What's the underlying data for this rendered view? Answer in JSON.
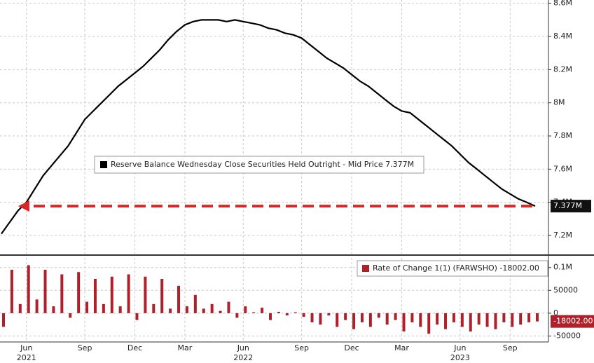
{
  "chart_data": [
    {
      "type": "line",
      "series": [
        {
          "name": "Reserve Balance Wednesday Close Securities Held Outright - Mid Price 7.377M",
          "color": "#000000",
          "values": [
            7.21,
            7.28,
            7.35,
            7.4,
            7.48,
            7.56,
            7.62,
            7.68,
            7.74,
            7.82,
            7.9,
            7.95,
            8.0,
            8.05,
            8.1,
            8.14,
            8.18,
            8.22,
            8.27,
            8.32,
            8.38,
            8.43,
            8.47,
            8.49,
            8.5,
            8.5,
            8.5,
            8.49,
            8.5,
            8.49,
            8.48,
            8.47,
            8.45,
            8.44,
            8.42,
            8.41,
            8.39,
            8.35,
            8.31,
            8.27,
            8.24,
            8.21,
            8.17,
            8.13,
            8.1,
            8.06,
            8.02,
            7.98,
            7.95,
            7.94,
            7.9,
            7.86,
            7.82,
            7.78,
            7.74,
            7.69,
            7.64,
            7.6,
            7.56,
            7.52,
            7.48,
            7.45,
            7.42,
            7.4,
            7.377
          ],
          "value_labels": [
            null,
            null,
            null,
            null,
            null,
            null,
            null,
            null,
            null,
            null,
            null,
            null,
            null,
            null,
            null,
            null,
            null,
            null,
            null,
            null,
            null,
            null,
            null,
            null,
            null,
            null,
            null,
            null,
            null,
            null,
            null,
            null,
            null,
            null,
            null,
            null,
            null,
            null,
            null,
            null,
            null,
            null,
            null,
            null,
            null,
            null,
            null,
            null,
            null,
            null,
            null,
            null,
            null,
            null,
            null,
            null,
            null,
            null,
            null,
            null,
            null,
            null,
            null,
            null,
            "7.377M"
          ]
        }
      ],
      "ylim": [
        7.09,
        8.62
      ],
      "yticks": [
        {
          "value": 7.2,
          "label": "7.2M"
        },
        {
          "value": 7.4,
          "label": "7.4M"
        },
        {
          "value": 7.6,
          "label": "7.6M"
        },
        {
          "value": 7.8,
          "label": "7.8M"
        },
        {
          "value": 8,
          "label": "8M"
        },
        {
          "value": 8.2,
          "label": "8.2M"
        },
        {
          "value": 8.4,
          "label": "8.4M"
        },
        {
          "value": 8.6,
          "label": "8.6M"
        }
      ],
      "grid": true,
      "arrow_color": "#d62a2a"
    },
    {
      "type": "bar",
      "categories": [
        null,
        null,
        null,
        "Jun",
        null,
        null,
        null,
        null,
        null,
        null,
        "Sep",
        null,
        null,
        null,
        null,
        null,
        "Dec",
        null,
        null,
        null,
        null,
        null,
        "Mar",
        null,
        null,
        null,
        null,
        null,
        null,
        "Jun",
        null,
        null,
        null,
        null,
        null,
        null,
        "Sep",
        null,
        null,
        null,
        null,
        null,
        "Dec",
        null,
        null,
        null,
        null,
        null,
        "Mar",
        null,
        null,
        null,
        null,
        null,
        null,
        "Jun",
        null,
        null,
        null,
        null,
        null,
        "Sep",
        null,
        null,
        null
      ],
      "x_year_labels": [
        "2021",
        "2022",
        "2023"
      ],
      "series": [
        {
          "name": "Rate of Change 1(1) (FARWSHO) -18002.00",
          "color": "#b0202a",
          "values": [
            -30000,
            95000,
            20000,
            105000,
            30000,
            95000,
            15000,
            85000,
            -10000,
            90000,
            25000,
            75000,
            20000,
            80000,
            15000,
            85000,
            -15000,
            80000,
            20000,
            75000,
            10000,
            60000,
            15000,
            40000,
            10000,
            20000,
            5000,
            25000,
            -10000,
            15000,
            2000,
            12000,
            -15000,
            3000,
            -5000,
            2000,
            -8000,
            -20000,
            -25000,
            -5000,
            -30000,
            -15000,
            -35000,
            -20000,
            -30000,
            -10000,
            -25000,
            -15000,
            -40000,
            -20000,
            -30000,
            -45000,
            -25000,
            -35000,
            -20000,
            -30000,
            -40000,
            -25000,
            -30000,
            -35000,
            -20000,
            -30000,
            -25000,
            -20000,
            -18002
          ],
          "value_labels": [
            null,
            null,
            null,
            null,
            null,
            null,
            null,
            null,
            null,
            null,
            null,
            null,
            null,
            null,
            null,
            null,
            null,
            null,
            null,
            null,
            null,
            null,
            null,
            null,
            null,
            null,
            null,
            null,
            null,
            null,
            null,
            null,
            null,
            null,
            null,
            null,
            null,
            null,
            null,
            null,
            null,
            null,
            null,
            null,
            null,
            null,
            null,
            null,
            null,
            null,
            null,
            null,
            null,
            null,
            null,
            null,
            null,
            null,
            null,
            null,
            null,
            null,
            null,
            null,
            "-18002.00"
          ]
        }
      ],
      "ylim": [
        -63000,
        121000
      ],
      "yticks": [
        {
          "value": 100000,
          "label": "0.1M"
        },
        50000,
        0,
        -50000
      ],
      "grid": true
    }
  ]
}
